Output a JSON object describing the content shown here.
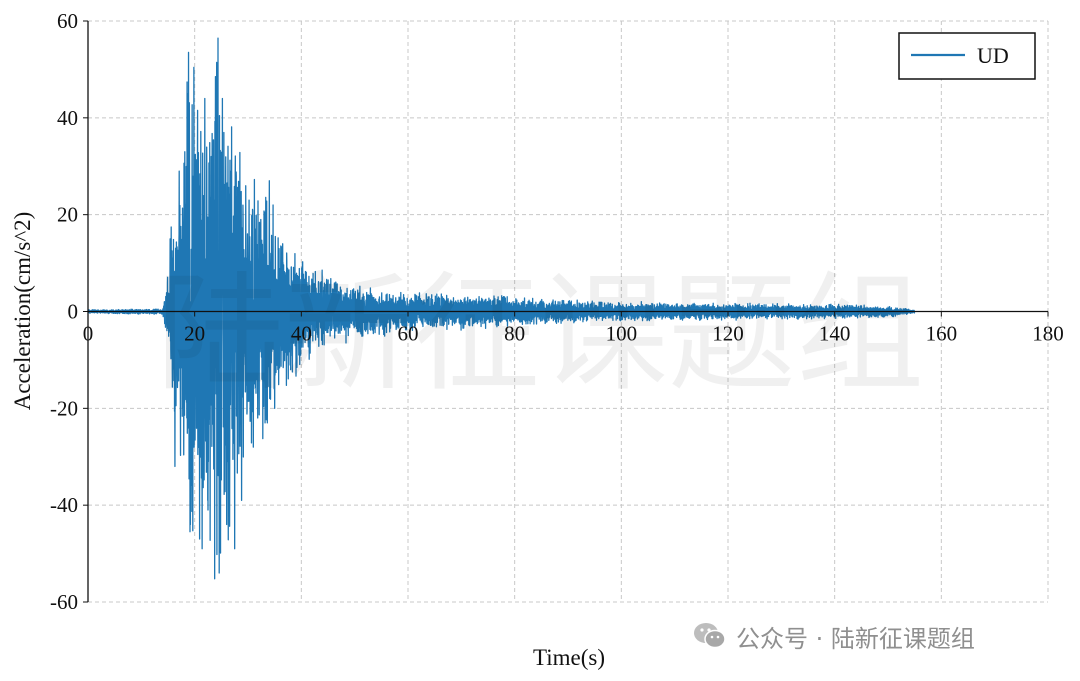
{
  "chart_data": {
    "type": "line",
    "title": "",
    "xlabel": "Time(s)",
    "ylabel": "Acceleration(cm/s^2)",
    "xlim": [
      0,
      180
    ],
    "ylim": [
      -60,
      60
    ],
    "xticks": [
      0,
      20,
      40,
      60,
      80,
      100,
      120,
      140,
      160,
      180
    ],
    "yticks": [
      60,
      40,
      20,
      0,
      -20,
      -40,
      -60
    ],
    "xtick_labels": [
      "0",
      "20",
      "40",
      "60",
      "80",
      "100",
      "120",
      "140",
      "160",
      "180"
    ],
    "ytick_labels": [
      "60",
      "40",
      "20",
      "0",
      "-20",
      "-40",
      "-60"
    ],
    "grid": true,
    "legend_position": "top-right",
    "series": [
      {
        "name": "UD",
        "color": "#1f77b4",
        "x_start": 0,
        "x_end": 155,
        "envelope": [
          [
            0,
            0.3
          ],
          [
            14,
            0.5
          ],
          [
            15,
            7
          ],
          [
            16,
            18
          ],
          [
            17,
            30
          ],
          [
            18,
            40
          ],
          [
            19,
            47
          ],
          [
            20,
            45
          ],
          [
            21,
            38
          ],
          [
            22,
            42
          ],
          [
            23,
            50
          ],
          [
            24,
            48
          ],
          [
            25,
            45
          ],
          [
            26,
            40
          ],
          [
            27,
            36
          ],
          [
            28,
            30
          ],
          [
            29,
            28
          ],
          [
            30,
            26
          ],
          [
            32,
            24
          ],
          [
            34,
            20
          ],
          [
            36,
            14
          ],
          [
            38,
            12
          ],
          [
            40,
            10
          ],
          [
            42,
            8
          ],
          [
            45,
            6
          ],
          [
            50,
            5
          ],
          [
            55,
            4
          ],
          [
            60,
            3.5
          ],
          [
            70,
            3
          ],
          [
            80,
            2.5
          ],
          [
            90,
            2
          ],
          [
            100,
            1.6
          ],
          [
            120,
            1.4
          ],
          [
            140,
            1.2
          ],
          [
            150,
            1
          ],
          [
            155,
            0.3
          ]
        ],
        "peaks": [
          [
            15.4,
            15
          ],
          [
            16.3,
            -32
          ],
          [
            17.1,
            29
          ],
          [
            17.9,
            -20
          ],
          [
            18.7,
            45
          ],
          [
            19.2,
            -44
          ],
          [
            20.3,
            31
          ],
          [
            21.4,
            -49
          ],
          [
            21.9,
            44
          ],
          [
            22.5,
            -41
          ],
          [
            23.1,
            32
          ],
          [
            23.9,
            48.5
          ],
          [
            24.6,
            -54
          ],
          [
            25.2,
            44
          ],
          [
            26.0,
            -44
          ],
          [
            26.8,
            29
          ],
          [
            27.5,
            -49
          ],
          [
            28.1,
            25
          ],
          [
            28.8,
            -39
          ],
          [
            30.2,
            23
          ],
          [
            31.0,
            -28
          ],
          [
            32.4,
            19
          ],
          [
            33.2,
            -23
          ],
          [
            34.0,
            27
          ],
          [
            35.0,
            -20
          ],
          [
            36.5,
            14
          ],
          [
            38.0,
            -12
          ],
          [
            40.2,
            10
          ]
        ]
      }
    ]
  },
  "legend": {
    "label": "UD"
  },
  "watermark": {
    "center_text": "陆新征课题组",
    "credit_text": "公众号 · 陆新征课题组",
    "icon": "wechat-icon"
  }
}
